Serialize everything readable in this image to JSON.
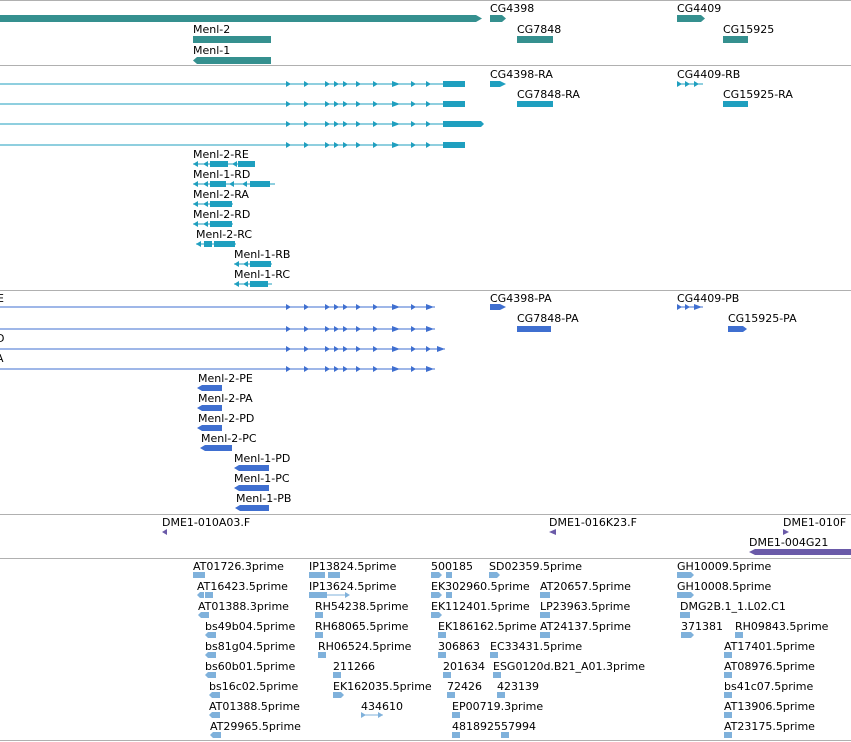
{
  "colors": {
    "gene": "#35908f",
    "transcript": "#1f9fbf",
    "protein": "#3f6fd0",
    "clone": "#6a5aa8",
    "est": "#7fb1db"
  },
  "tracks": {
    "gene": {
      "labels": [
        "CG4398",
        "CG4409",
        "Menl-2",
        "CG7848",
        "CG15925",
        "Menl-1"
      ]
    },
    "transcript": {
      "labels": [
        "CG4398-RA",
        "CG4409-RB",
        "CG7848-RA",
        "CG15925-RA",
        "Menl-2-RE",
        "Menl-1-RD",
        "Menl-2-RA",
        "Menl-2-RD",
        "Menl-2-RC",
        "Menl-1-RB",
        "Menl-1-RC"
      ]
    },
    "protein": {
      "labels": [
        "CG4398-PA",
        "CG4409-PB",
        "CG7848-PA",
        "CG15925-PA",
        "Menl-2-PE",
        "Menl-2-PA",
        "Menl-2-PD",
        "Menl-2-PC",
        "Menl-1-PD",
        "Menl-1-PC",
        "Menl-1-PB"
      ],
      "cut_labels": [
        "E",
        "D",
        "A"
      ]
    },
    "clone": {
      "labels": [
        "DME1-010A03.F",
        "DME1-016K23.F",
        "DME1-010F",
        "DME1-004G21"
      ]
    },
    "est": {
      "labels": [
        "AT01726.3prime",
        "IP13824.5prime",
        "500185",
        "SD02359.5prime",
        "GH10009.5prime",
        "AT16423.5prime",
        "IP13624.5prime",
        "EK302960.5prime",
        "AT20657.5prime",
        "GH10008.5prime",
        "AT01388.3prime",
        "RH54238.5prime",
        "EK112401.5prime",
        "LP23963.5prime",
        "DMG2B.1_1.L02.C1",
        "bs49b04.5prime",
        "RH68065.5prime",
        "EK186162.5prime",
        "AT24137.5prime",
        "371381",
        "RH09843.5prime",
        "bs81g04.5prime",
        "RH06524.5prime",
        "306863",
        "EC33431.5prime",
        "AT17401.5prime",
        "bs60b01.5prime",
        "211266",
        "201634",
        "ESG0120d.B21_A01.3prime",
        "AT08976.5prime",
        "bs16c02.5prime",
        "EK162035.5prime",
        "72426",
        "423139",
        "bs41c07.5prime",
        "AT01388.5prime",
        "434610",
        "EP00719.3prime",
        "AT13906.5prime",
        "AT29965.5prime",
        "481892557994",
        "AT23175.5prime"
      ]
    }
  }
}
